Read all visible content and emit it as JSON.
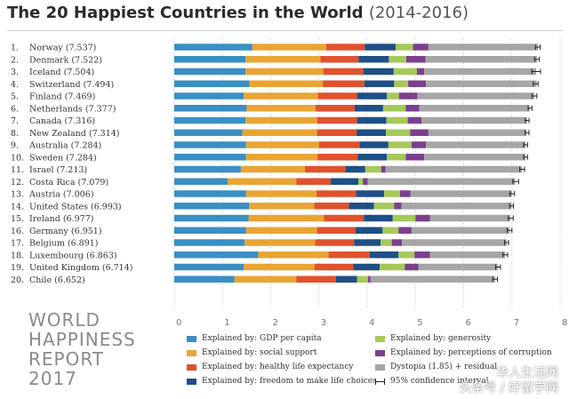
{
  "title": "The 20 Happiest Countries in the World",
  "title_years": "(2014-2016)",
  "brand": [
    "WORLD",
    "HAPPINESS",
    "REPORT",
    "2017"
  ],
  "watermark": [
    "华人生活网",
    "头条号 / 好留学网"
  ],
  "chart_data": {
    "type": "bar",
    "orientation": "horizontal",
    "stacked": true,
    "title": "The 20 Happiest Countries in the World (2014-2016)",
    "xlim": [
      0,
      8
    ],
    "xticks": [
      "0",
      "1",
      "2",
      "3",
      "4",
      "5",
      "6",
      "7",
      "8"
    ],
    "categories": [
      {
        "rank": "1.",
        "label": "Norway (7.537)"
      },
      {
        "rank": "2.",
        "label": "Denmark (7.522)"
      },
      {
        "rank": "3.",
        "label": "Iceland (7.504)"
      },
      {
        "rank": "4.",
        "label": "Switzerland (7.494)"
      },
      {
        "rank": "5.",
        "label": "Finland (7.469)"
      },
      {
        "rank": "6.",
        "label": "Netherlands (7.377)"
      },
      {
        "rank": "7.",
        "label": "Canada (7.316)"
      },
      {
        "rank": "8.",
        "label": "New Zealand (7.314)"
      },
      {
        "rank": "9.",
        "label": "Australia (7.284)"
      },
      {
        "rank": "10.",
        "label": "Sweden (7.284)"
      },
      {
        "rank": "11.",
        "label": "Israel (7.213)"
      },
      {
        "rank": "12.",
        "label": "Costa Rica (7.079)"
      },
      {
        "rank": "13.",
        "label": "Austria (7.006)"
      },
      {
        "rank": "14.",
        "label": "United States (6.993)"
      },
      {
        "rank": "15.",
        "label": "Ireland (6.977)"
      },
      {
        "rank": "16.",
        "label": "Germany (6.951)"
      },
      {
        "rank": "17.",
        "label": "Belgium (6.891)"
      },
      {
        "rank": "18.",
        "label": "Luxembourg (6.863)"
      },
      {
        "rank": "19.",
        "label": "United Kingdom (6.714)"
      },
      {
        "rank": "20.",
        "label": "Chile (6.652)"
      }
    ],
    "series": [
      {
        "name": "Explained by: GDP per capita",
        "color": "#3a8fc4",
        "values": [
          1.62,
          1.48,
          1.48,
          1.56,
          1.44,
          1.5,
          1.48,
          1.41,
          1.49,
          1.49,
          1.38,
          1.11,
          1.49,
          1.55,
          1.54,
          1.49,
          1.46,
          1.74,
          1.44,
          1.25
        ]
      },
      {
        "name": "Explained by: social support",
        "color": "#e9a534",
        "values": [
          1.53,
          1.55,
          1.61,
          1.52,
          1.54,
          1.43,
          1.48,
          1.55,
          1.51,
          1.48,
          1.33,
          1.42,
          1.46,
          1.35,
          1.56,
          1.47,
          1.46,
          1.46,
          1.47,
          1.28
        ]
      },
      {
        "name": "Explained by: healthy life expectancy",
        "color": "#e0522e",
        "values": [
          0.8,
          0.79,
          0.83,
          0.86,
          0.81,
          0.81,
          0.83,
          0.82,
          0.84,
          0.83,
          0.84,
          0.71,
          0.82,
          0.72,
          0.83,
          0.8,
          0.81,
          0.85,
          0.8,
          0.82
        ]
      },
      {
        "name": "Explained by: freedom to make life choices",
        "color": "#1e4f86",
        "values": [
          0.64,
          0.63,
          0.63,
          0.62,
          0.62,
          0.59,
          0.61,
          0.61,
          0.6,
          0.61,
          0.41,
          0.58,
          0.58,
          0.52,
          0.6,
          0.56,
          0.55,
          0.6,
          0.55,
          0.44
        ]
      },
      {
        "name": "Explained by: generosity",
        "color": "#a6c95a",
        "values": [
          0.36,
          0.36,
          0.48,
          0.29,
          0.25,
          0.47,
          0.44,
          0.5,
          0.48,
          0.39,
          0.33,
          0.09,
          0.33,
          0.42,
          0.47,
          0.33,
          0.23,
          0.33,
          0.52,
          0.23
        ]
      },
      {
        "name": "Explained by: perceptions of corruption",
        "color": "#7b3f8e",
        "values": [
          0.32,
          0.4,
          0.15,
          0.37,
          0.38,
          0.28,
          0.29,
          0.38,
          0.3,
          0.38,
          0.09,
          0.1,
          0.22,
          0.15,
          0.3,
          0.27,
          0.21,
          0.32,
          0.28,
          0.05
        ]
      },
      {
        "name": "Dystopia (1.85) + residual",
        "color": "#a6a6a6",
        "values": [
          2.277,
          2.312,
          2.324,
          2.294,
          2.429,
          2.287,
          2.186,
          2.034,
          2.064,
          2.104,
          2.833,
          3.059,
          2.106,
          2.283,
          1.667,
          2.031,
          2.171,
          1.563,
          1.654,
          2.582
        ]
      },
      {
        "name": "95% confidence interval",
        "color": "#222222",
        "values": [
          0.05,
          0.05,
          0.09,
          0.05,
          0.05,
          0.04,
          0.04,
          0.04,
          0.04,
          0.04,
          0.05,
          0.06,
          0.05,
          0.04,
          0.05,
          0.05,
          0.04,
          0.05,
          0.05,
          0.05
        ]
      }
    ],
    "totals": [
      7.537,
      7.522,
      7.504,
      7.494,
      7.469,
      7.377,
      7.316,
      7.314,
      7.284,
      7.284,
      7.213,
      7.079,
      7.006,
      6.993,
      6.977,
      6.951,
      6.891,
      6.863,
      6.714,
      6.652
    ]
  }
}
